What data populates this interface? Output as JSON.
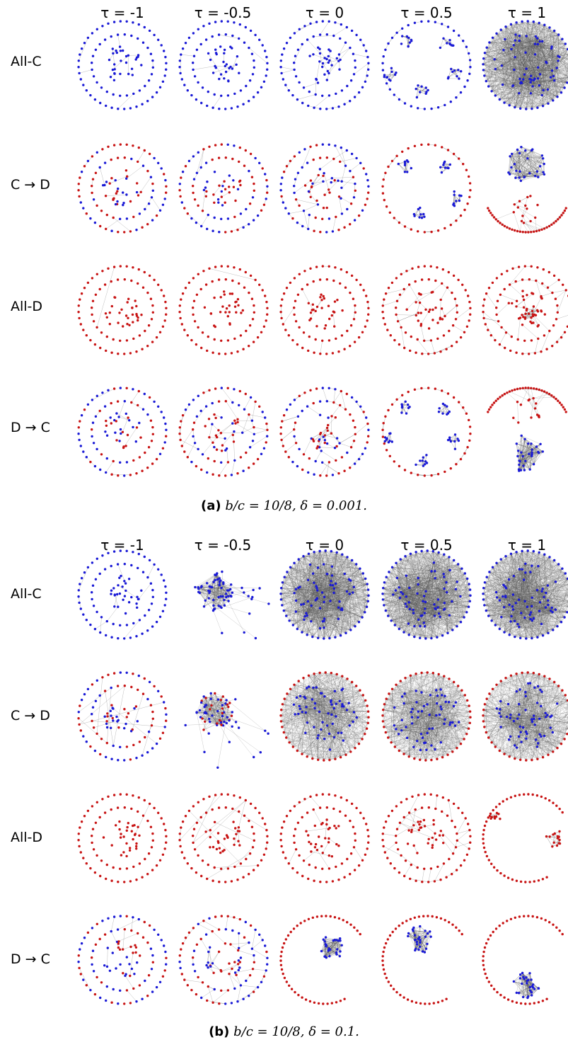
{
  "colors": {
    "cooperator": "#1a1ad6",
    "defector": "#c81414",
    "edge": "#555555"
  },
  "columns": [
    "τ = -1",
    "τ = -0.5",
    "τ = 0",
    "τ = 0.5",
    "τ = 1"
  ],
  "rows": [
    "All-C",
    "C → D",
    "All-D",
    "D → C"
  ],
  "panels": [
    {
      "id": "a",
      "caption_letter": "(a)",
      "caption_text": "b/c = 10/8, δ = 0.001.",
      "grid": [
        [
          "ring-blue-sparse",
          "ring-blue-sparse",
          "ring-blue-mid",
          "clusters-blue-5",
          "dense-blue-full"
        ],
        [
          "ring-mixed-sparse",
          "ring-mixed-sparse",
          "ring-mixed-mid",
          "clusters-mixed-4",
          "split-blue-top-red-bottom"
        ],
        [
          "ring-red-empty",
          "ring-red-empty",
          "ring-red-sparse",
          "ring-red-mid",
          "ring-red-center-cluster"
        ],
        [
          "ring-mixed-sparse",
          "ring-mixed-mid",
          "ring-mixed-clusters",
          "clusters-mixed-5",
          "split-red-top-blue-bottom"
        ]
      ]
    },
    {
      "id": "b",
      "caption_letter": "(b)",
      "caption_text": "b/c = 10/8, δ = 0.1.",
      "grid": [
        [
          "ring-blue-sparse",
          "blob-blue-spiky",
          "dense-blue-full",
          "dense-blue-full",
          "dense-blue-full"
        ],
        [
          "ring-mixed-chords",
          "blob-mixed-spiky",
          "dense-mixed-core",
          "dense-blue-core-red-rim",
          "dense-blue-core-red-rim"
        ],
        [
          "ring-red-empty",
          "ring-red-chords",
          "ring-red-sparse",
          "ring-red-mid",
          "red-arc-small-clusters"
        ],
        [
          "ring-mixed-sparse",
          "ring-mixed-clusters",
          "arc-red-blue-cluster",
          "arc-red-blue-cluster-2",
          "arc-red-blue-cluster-low"
        ]
      ]
    }
  ]
}
